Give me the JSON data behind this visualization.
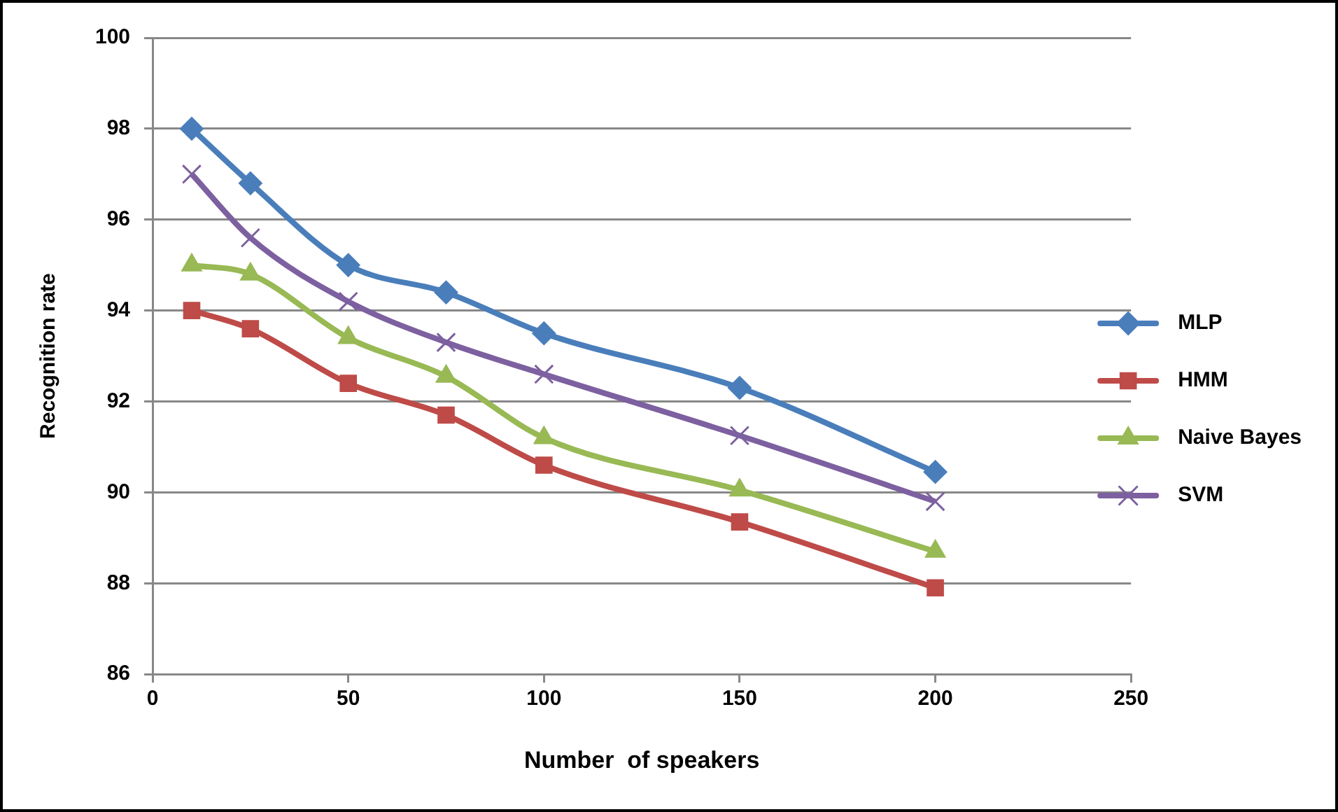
{
  "chart_data": {
    "type": "line",
    "xlabel": "Number  of speakers",
    "ylabel": "Recognition rate",
    "x": [
      10,
      25,
      50,
      75,
      100,
      150,
      200
    ],
    "series": [
      {
        "name": "MLP",
        "color": "#4a7ebb",
        "marker": "diamond",
        "values": [
          98.0,
          96.8,
          95.0,
          94.4,
          93.5,
          92.3,
          90.45
        ]
      },
      {
        "name": "HMM",
        "color": "#be4b48",
        "marker": "square",
        "values": [
          94.0,
          93.6,
          92.4,
          91.7,
          90.6,
          89.35,
          87.9
        ]
      },
      {
        "name": "Naive Bayes",
        "color": "#98b954",
        "marker": "triangle",
        "values": [
          95.0,
          94.8,
          93.4,
          92.55,
          91.2,
          90.05,
          88.7
        ]
      },
      {
        "name": "SVM",
        "color": "#7d60a0",
        "marker": "cross",
        "values": [
          97.0,
          95.6,
          94.2,
          93.3,
          92.6,
          91.25,
          89.8
        ]
      }
    ],
    "xlim": [
      0,
      250
    ],
    "xticks": [
      0,
      50,
      100,
      150,
      200,
      250
    ],
    "ylim": [
      86,
      100
    ],
    "yticks": [
      86,
      88,
      90,
      92,
      94,
      96,
      98,
      100
    ],
    "grid": "y",
    "legend": "right",
    "line_style": "solid"
  }
}
